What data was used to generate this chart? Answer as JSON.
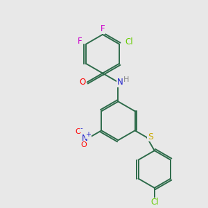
{
  "background_color": "#e8e8e8",
  "bond_color": "#2d6b4a",
  "atom_colors": {
    "F": "#cc00cc",
    "Cl": "#66cc00",
    "O": "#ff0000",
    "N": "#2222cc",
    "H": "#888888",
    "S": "#ccaa00"
  },
  "figsize": [
    3.0,
    3.0
  ],
  "dpi": 100
}
